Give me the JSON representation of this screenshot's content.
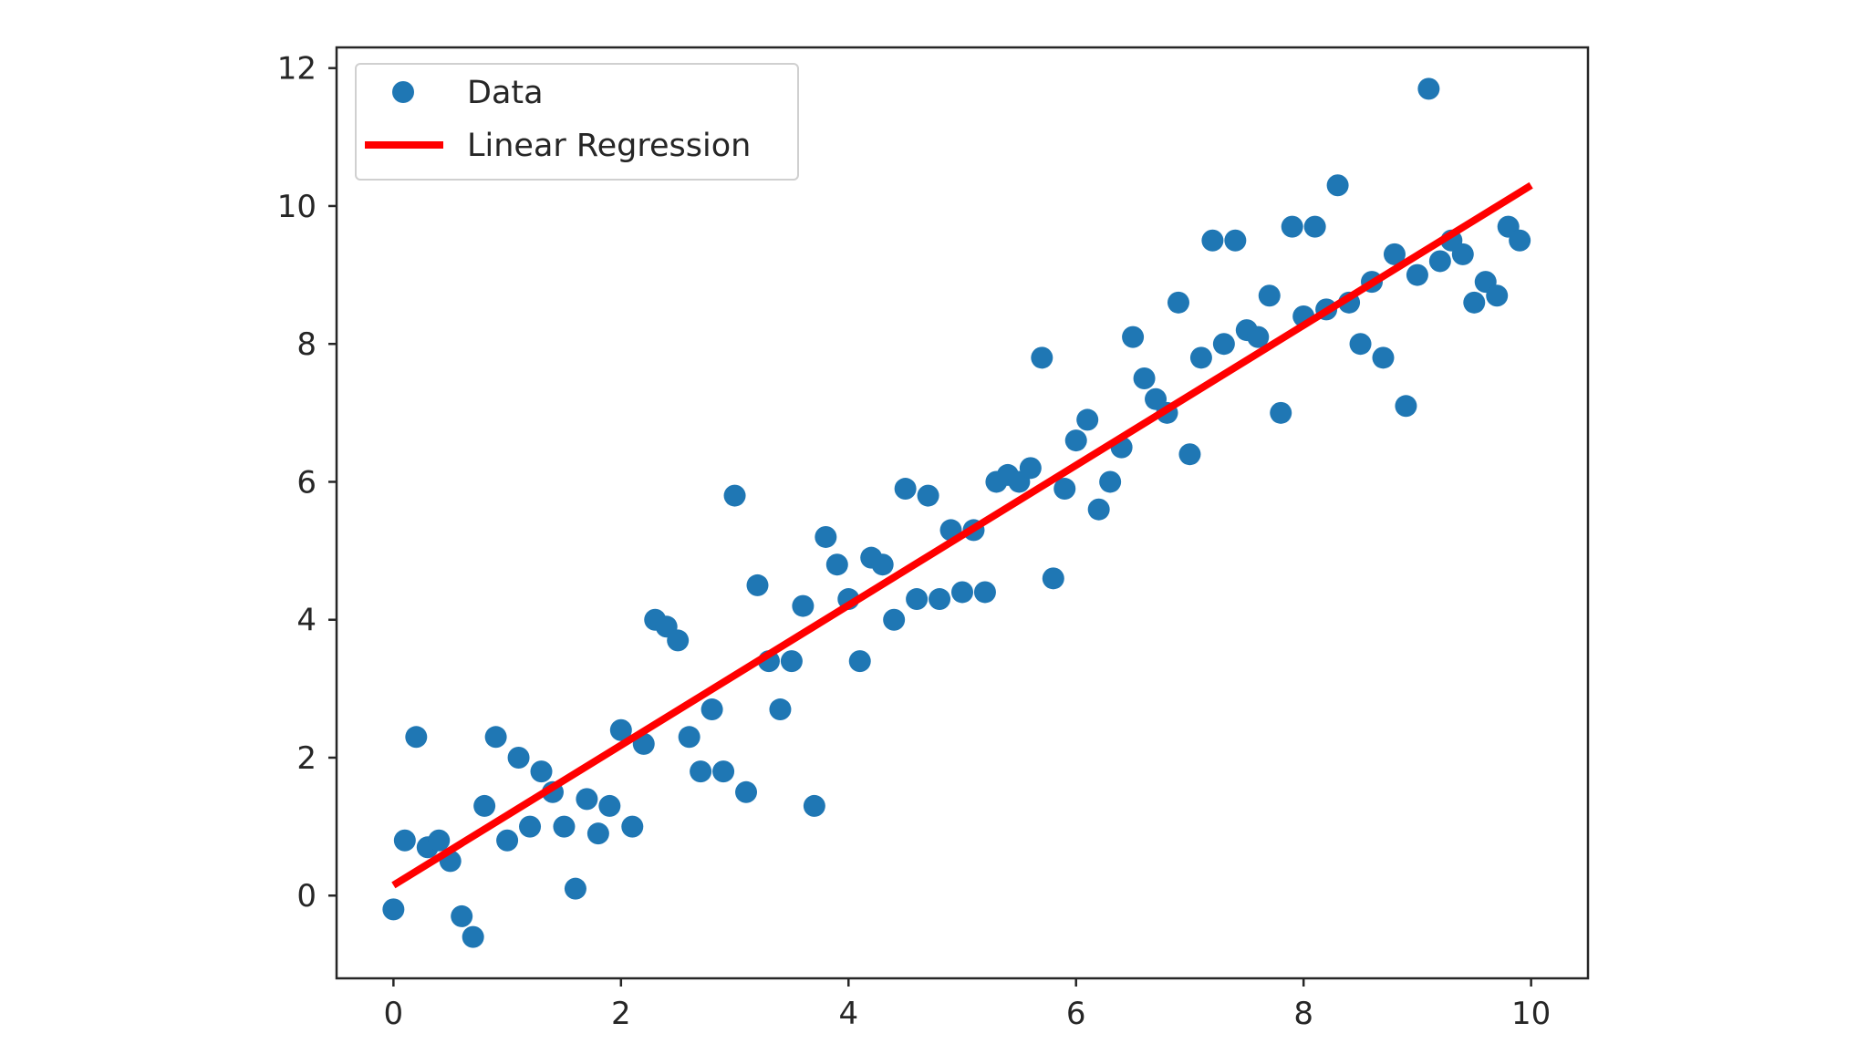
{
  "chart_data": {
    "type": "scatter",
    "title": "",
    "xlabel": "",
    "ylabel": "",
    "xlim": [
      -0.5,
      10.5
    ],
    "ylim": [
      -1.2,
      12.3
    ],
    "xticks": [
      0,
      2,
      4,
      6,
      8,
      10
    ],
    "yticks": [
      0,
      2,
      4,
      6,
      8,
      10,
      12
    ],
    "grid": false,
    "legend_position": "top-left",
    "series": [
      {
        "name": "Data",
        "kind": "scatter",
        "color": "#1f77b4",
        "points": [
          [
            0.0,
            -0.2
          ],
          [
            0.1,
            0.8
          ],
          [
            0.2,
            2.3
          ],
          [
            0.3,
            0.7
          ],
          [
            0.4,
            0.8
          ],
          [
            0.5,
            0.5
          ],
          [
            0.6,
            -0.3
          ],
          [
            0.7,
            -0.6
          ],
          [
            0.8,
            1.3
          ],
          [
            0.9,
            2.3
          ],
          [
            1.0,
            0.8
          ],
          [
            1.1,
            2.0
          ],
          [
            1.2,
            1.0
          ],
          [
            1.3,
            1.8
          ],
          [
            1.4,
            1.5
          ],
          [
            1.5,
            1.0
          ],
          [
            1.6,
            0.1
          ],
          [
            1.7,
            1.4
          ],
          [
            1.8,
            0.9
          ],
          [
            1.9,
            1.3
          ],
          [
            2.0,
            2.4
          ],
          [
            2.1,
            1.0
          ],
          [
            2.2,
            2.2
          ],
          [
            2.3,
            4.0
          ],
          [
            2.4,
            3.9
          ],
          [
            2.5,
            3.7
          ],
          [
            2.6,
            2.3
          ],
          [
            2.7,
            1.8
          ],
          [
            2.8,
            2.7
          ],
          [
            2.9,
            1.8
          ],
          [
            3.0,
            5.8
          ],
          [
            3.1,
            1.5
          ],
          [
            3.2,
            4.5
          ],
          [
            3.3,
            3.4
          ],
          [
            3.4,
            2.7
          ],
          [
            3.5,
            3.4
          ],
          [
            3.6,
            4.2
          ],
          [
            3.7,
            1.3
          ],
          [
            3.8,
            5.2
          ],
          [
            3.9,
            4.8
          ],
          [
            4.0,
            4.3
          ],
          [
            4.1,
            3.4
          ],
          [
            4.2,
            4.9
          ],
          [
            4.3,
            4.8
          ],
          [
            4.4,
            4.0
          ],
          [
            4.5,
            5.9
          ],
          [
            4.6,
            4.3
          ],
          [
            4.7,
            5.8
          ],
          [
            4.8,
            4.3
          ],
          [
            4.9,
            5.3
          ],
          [
            5.0,
            4.4
          ],
          [
            5.1,
            5.3
          ],
          [
            5.2,
            4.4
          ],
          [
            5.3,
            6.0
          ],
          [
            5.4,
            6.1
          ],
          [
            5.5,
            6.0
          ],
          [
            5.6,
            6.2
          ],
          [
            5.7,
            7.8
          ],
          [
            5.8,
            4.6
          ],
          [
            5.9,
            5.9
          ],
          [
            6.0,
            6.6
          ],
          [
            6.1,
            6.9
          ],
          [
            6.2,
            5.6
          ],
          [
            6.3,
            6.0
          ],
          [
            6.4,
            6.5
          ],
          [
            6.5,
            8.1
          ],
          [
            6.6,
            7.5
          ],
          [
            6.7,
            7.2
          ],
          [
            6.8,
            7.0
          ],
          [
            6.9,
            8.6
          ],
          [
            7.0,
            6.4
          ],
          [
            7.1,
            7.8
          ],
          [
            7.2,
            9.5
          ],
          [
            7.3,
            8.0
          ],
          [
            7.4,
            9.5
          ],
          [
            7.5,
            8.2
          ],
          [
            7.6,
            8.1
          ],
          [
            7.7,
            8.7
          ],
          [
            7.8,
            7.0
          ],
          [
            7.9,
            9.7
          ],
          [
            8.0,
            8.4
          ],
          [
            8.1,
            9.7
          ],
          [
            8.2,
            8.5
          ],
          [
            8.3,
            10.3
          ],
          [
            8.4,
            8.6
          ],
          [
            8.5,
            8.0
          ],
          [
            8.6,
            8.9
          ],
          [
            8.7,
            7.8
          ],
          [
            8.8,
            9.3
          ],
          [
            8.9,
            7.1
          ],
          [
            9.0,
            9.0
          ],
          [
            9.1,
            11.7
          ],
          [
            9.2,
            9.2
          ],
          [
            9.3,
            9.5
          ],
          [
            9.4,
            9.3
          ],
          [
            9.5,
            8.6
          ],
          [
            9.6,
            8.9
          ],
          [
            9.7,
            8.7
          ],
          [
            9.8,
            9.7
          ],
          [
            9.9,
            9.5
          ]
        ]
      },
      {
        "name": "Linear Regression",
        "kind": "line",
        "color": "#ff0000",
        "points": [
          [
            0,
            0.15
          ],
          [
            10,
            10.3
          ]
        ]
      }
    ]
  }
}
